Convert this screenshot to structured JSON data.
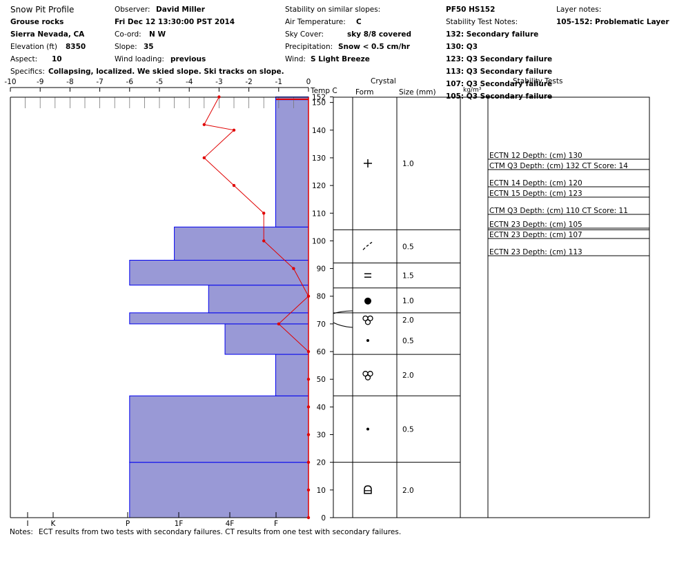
{
  "header": {
    "title": "Snow Pit Profile",
    "location": "Grouse rocks",
    "region": "Sierra Nevada, CA",
    "elevation_label": "Elevation (ft)",
    "elevation_value": "8350",
    "aspect_label": "Aspect:",
    "aspect_value": "10",
    "specifics_label": "Specifics:",
    "specifics_value": "Collapsing, localized. We skied slope. Ski tracks on slope.",
    "observer_label": "Observer:",
    "observer_value": "David Miller",
    "datetime": "Fri Dec 12 13:30:00 PST 2014",
    "coord_label": "Co-ord:",
    "coord_value": "N  W",
    "slope_label": "Slope:",
    "slope_value": "35",
    "wind_loading_label": "Wind loading:",
    "wind_loading_value": "previous",
    "similar_slopes_label": "Stability on similar slopes:",
    "air_temp_label": "Air Temperature:",
    "air_temp_value": "C",
    "sky_label": "Sky Cover:",
    "sky_value": "sky 8/8 covered",
    "precip_label": "Precipitation:",
    "precip_value": "Snow < 0.5 cm/hr",
    "wind_label": "Wind:",
    "wind_value": "S Light Breeze",
    "pit_id": "PF50 HS152",
    "stability_notes_label": "Stability Test Notes:",
    "stability_notes": [
      "132: Secondary failure",
      "130: Q3",
      "123: Q3 Secondary failure",
      "113: Q3 Secondary failure",
      "107: Q3 Secondary failure",
      "105: Q3 Secondary failure"
    ],
    "layer_notes_label": "Layer notes:",
    "layer_notes_value": "105-152: Problematic Layer"
  },
  "columns": {
    "temp": "Temp C",
    "crystal": "Crystal",
    "form": "Form",
    "size": "Size (mm)",
    "density": "kg/m³",
    "stability": "Stability Tests"
  },
  "notes_label": "Notes:",
  "notes_value": "ECT results from two tests with secondary failures. CT results from one test with secondary failures.",
  "chart_data": {
    "type": "bar",
    "temp_axis": {
      "ticks": [
        "-10",
        "-9",
        "-8",
        "-7",
        "-6",
        "-5",
        "-4",
        "-3",
        "-2",
        "-1",
        "0"
      ],
      "range": [
        -10,
        0
      ]
    },
    "depth_axis": {
      "ticks": [
        0,
        10,
        20,
        30,
        40,
        50,
        60,
        70,
        80,
        90,
        100,
        110,
        120,
        130,
        140,
        150,
        152
      ],
      "range": [
        0,
        152
      ]
    },
    "hardness_ticks": [
      "I",
      "K",
      "P",
      "1F",
      "4F",
      "F"
    ],
    "hardness_layers": [
      {
        "bottom": 0,
        "top": 20,
        "temp_extent": -6
      },
      {
        "bottom": 20,
        "top": 44,
        "temp_extent": -6
      },
      {
        "bottom": 44,
        "top": 59,
        "temp_extent": -1.1
      },
      {
        "bottom": 59,
        "top": 70,
        "temp_extent": -2.8
      },
      {
        "bottom": 70,
        "top": 74,
        "temp_extent": -6
      },
      {
        "bottom": 74,
        "top": 84,
        "temp_extent": -3.35
      },
      {
        "bottom": 84,
        "top": 93,
        "temp_extent": -6
      },
      {
        "bottom": 93,
        "top": 105,
        "temp_extent": -4.5
      },
      {
        "bottom": 105,
        "top": 151,
        "temp_extent": -1.1
      },
      {
        "bottom": 151,
        "top": 152,
        "temp_extent": -1.1
      }
    ],
    "temperature_profile": [
      {
        "depth": 0,
        "temp": 0
      },
      {
        "depth": 10,
        "temp": 0
      },
      {
        "depth": 20,
        "temp": 0
      },
      {
        "depth": 30,
        "temp": 0
      },
      {
        "depth": 40,
        "temp": 0
      },
      {
        "depth": 50,
        "temp": 0
      },
      {
        "depth": 60,
        "temp": 0
      },
      {
        "depth": 70,
        "temp": -1
      },
      {
        "depth": 80,
        "temp": 0
      },
      {
        "depth": 90,
        "temp": -0.5
      },
      {
        "depth": 100,
        "temp": -1.5
      },
      {
        "depth": 110,
        "temp": -1.5
      },
      {
        "depth": 120,
        "temp": -2.5
      },
      {
        "depth": 130,
        "temp": -3.5
      },
      {
        "depth": 140,
        "temp": -2.5
      },
      {
        "depth": 142,
        "temp": -3.5
      },
      {
        "depth": 152,
        "temp": -3
      }
    ],
    "crystal_layers": [
      {
        "bottom": 0,
        "top": 20,
        "form": "depth-hoar",
        "size": "2.0"
      },
      {
        "bottom": 20,
        "top": 44,
        "form": "dot",
        "size": "0.5"
      },
      {
        "bottom": 44,
        "top": 59,
        "form": "faceted-cluster",
        "size": "2.0"
      },
      {
        "bottom": 59,
        "top": 69,
        "form": "dot",
        "size": "0.5"
      },
      {
        "bottom": 69,
        "top": 74,
        "form": "faceted-cluster",
        "size": "2.0"
      },
      {
        "bottom": 74,
        "top": 83,
        "form": "graupel",
        "size": "1.0"
      },
      {
        "bottom": 83,
        "top": 92,
        "form": "equals",
        "size": "1.5"
      },
      {
        "bottom": 92,
        "top": 104,
        "form": "decomposed",
        "size": "0.5"
      },
      {
        "bottom": 104,
        "top": 152,
        "form": "plus",
        "size": "1.0"
      }
    ],
    "stability_tests": [
      {
        "label": "ECTN 12   Depth: (cm) 130"
      },
      {
        "label": "CTM Q3 Depth: (cm) 132 CT Score: 14"
      },
      {
        "label": "ECTN 14   Depth: (cm) 120"
      },
      {
        "label": "ECTN 15   Depth: (cm) 123"
      },
      {
        "label": "CTM Q3 Depth: (cm) 110 CT Score: 11"
      },
      {
        "label": "ECTN 23   Depth: (cm) 105"
      },
      {
        "label": "ECTN 23   Depth: (cm) 107"
      },
      {
        "label": "ECTN 23   Depth: (cm) 113"
      }
    ]
  }
}
